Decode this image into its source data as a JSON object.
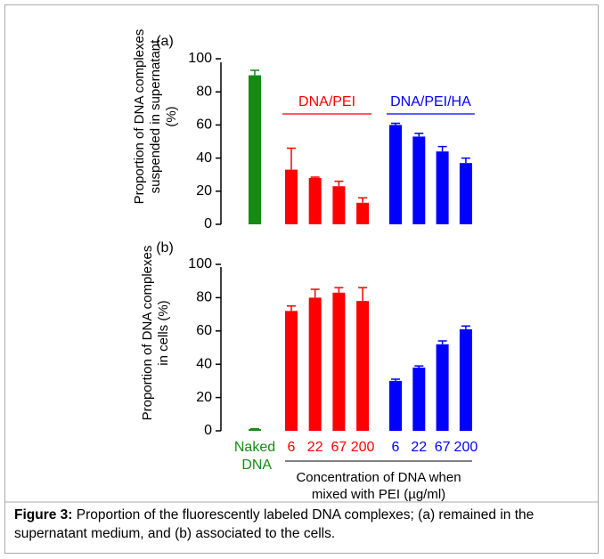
{
  "chart_data": [
    {
      "type": "bar",
      "panel_label": "(a)",
      "y_label": "Proportion of DNA complexes suspended in supernatant (%)",
      "categories": [
        null,
        null,
        null,
        null,
        null,
        null,
        null,
        null,
        null
      ],
      "series": [
        {
          "color": "#158a15",
          "values": [
            90,
            null,
            null,
            null,
            null,
            null,
            null,
            null,
            null
          ],
          "errors": [
            3,
            null,
            null,
            null,
            null,
            null,
            null,
            null,
            null
          ]
        },
        {
          "name": "DNA/PEI",
          "color": "#ff0000",
          "values": [
            null,
            33,
            28,
            23,
            13,
            null,
            null,
            null,
            null
          ],
          "errors": [
            null,
            13,
            0.5,
            3,
            3,
            null,
            null,
            null,
            null
          ]
        },
        {
          "name": "DNA/PEI/HA",
          "color": "#0000ff",
          "values": [
            null,
            null,
            null,
            null,
            null,
            60,
            53,
            44,
            37
          ],
          "errors": [
            null,
            null,
            null,
            null,
            null,
            1,
            2,
            3,
            3
          ]
        }
      ],
      "ylim": [
        0,
        100
      ],
      "yticks": [
        0,
        20,
        40,
        60,
        80,
        100
      ]
    },
    {
      "type": "bar",
      "panel_label": "(b)",
      "y_label": "Proportion of DNA complexes in cells (%)",
      "x_label": "Concentration of DNA when mixed with PEI (µg/ml)",
      "categories": [
        "Naked DNA",
        "6",
        "22",
        "67",
        "200",
        "6",
        "22",
        "67",
        "200"
      ],
      "series": [
        {
          "color": "#158a15",
          "values": [
            1,
            null,
            null,
            null,
            null,
            null,
            null,
            null,
            null
          ],
          "errors": [
            0.3,
            null,
            null,
            null,
            null,
            null,
            null,
            null,
            null
          ]
        },
        {
          "color": "#ff0000",
          "values": [
            null,
            72,
            80,
            83,
            78,
            null,
            null,
            null,
            null
          ],
          "errors": [
            null,
            3,
            5,
            3,
            8,
            null,
            null,
            null,
            null
          ]
        },
        {
          "color": "#0000ff",
          "values": [
            null,
            null,
            null,
            null,
            null,
            30,
            38,
            52,
            61
          ],
          "errors": [
            null,
            null,
            null,
            null,
            null,
            1,
            1,
            2,
            2
          ]
        }
      ],
      "ylim": [
        0,
        100
      ],
      "yticks": [
        0,
        20,
        40,
        60,
        80,
        100
      ]
    }
  ],
  "caption": {
    "label": "Figure 3:",
    "text": "Proportion of the fluorescently labeled DNA complexes; (a) remained in the supernatant medium, and (b) associated to the cells."
  }
}
